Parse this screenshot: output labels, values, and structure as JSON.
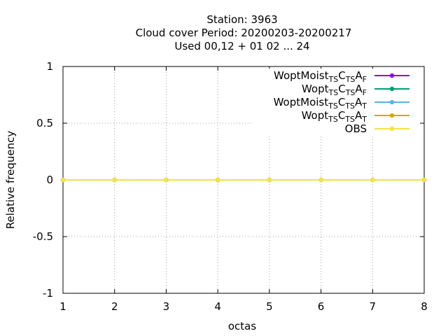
{
  "chart_data": {
    "type": "line",
    "title_lines": [
      "Station:     3963",
      "Cloud cover  Period: 20200203-20200217",
      "Used  00,12  + 01 02 ... 24"
    ],
    "xlabel": "octas",
    "ylabel": "Relative frequency",
    "xlim": [
      1,
      8
    ],
    "ylim": [
      -1,
      1
    ],
    "x_ticks": [
      1,
      2,
      3,
      4,
      5,
      6,
      7,
      8
    ],
    "y_ticks": [
      {
        "value": 1,
        "label": "1"
      },
      {
        "value": 0.5,
        "label": "0.5"
      },
      {
        "value": 0,
        "label": "0"
      },
      {
        "value": -0.5,
        "label": "-0.5"
      },
      {
        "value": -1,
        "label": "-1"
      }
    ],
    "grid": true,
    "legend_position": "top-right",
    "x": [
      1,
      2,
      3,
      4,
      5,
      6,
      7,
      8
    ],
    "series": [
      {
        "name_parts": [
          [
            "WoptMoist",
            ""
          ],
          [
            "TS",
            "sub"
          ],
          [
            "C",
            ""
          ],
          [
            "TS",
            "sub"
          ],
          [
            "A",
            ""
          ],
          [
            "F",
            "sub"
          ]
        ],
        "color": "#9400d3",
        "values": [
          0,
          0,
          0,
          0,
          0,
          0,
          0,
          0
        ]
      },
      {
        "name_parts": [
          [
            "Wopt",
            ""
          ],
          [
            "TS",
            "sub"
          ],
          [
            "C",
            ""
          ],
          [
            "TS",
            "sub"
          ],
          [
            "A",
            ""
          ],
          [
            "F",
            "sub"
          ]
        ],
        "color": "#009e73",
        "values": [
          0,
          0,
          0,
          0,
          0,
          0,
          0,
          0
        ]
      },
      {
        "name_parts": [
          [
            "WoptMoist",
            ""
          ],
          [
            "TS",
            "sub"
          ],
          [
            "C",
            ""
          ],
          [
            "TS",
            "sub"
          ],
          [
            "A",
            ""
          ],
          [
            "T",
            "sub"
          ]
        ],
        "color": "#56b4e9",
        "values": [
          0,
          0,
          0,
          0,
          0,
          0,
          0,
          0
        ]
      },
      {
        "name_parts": [
          [
            "Wopt",
            ""
          ],
          [
            "TS",
            "sub"
          ],
          [
            "C",
            ""
          ],
          [
            "TS",
            "sub"
          ],
          [
            "A",
            ""
          ],
          [
            "T",
            "sub"
          ]
        ],
        "color": "#e69f00",
        "values": [
          0,
          0,
          0,
          0,
          0,
          0,
          0,
          0
        ]
      },
      {
        "name_parts": [
          [
            "OBS",
            ""
          ]
        ],
        "color": "#f0e442",
        "values": [
          0,
          0,
          0,
          0,
          0,
          0,
          0,
          0
        ]
      }
    ]
  }
}
